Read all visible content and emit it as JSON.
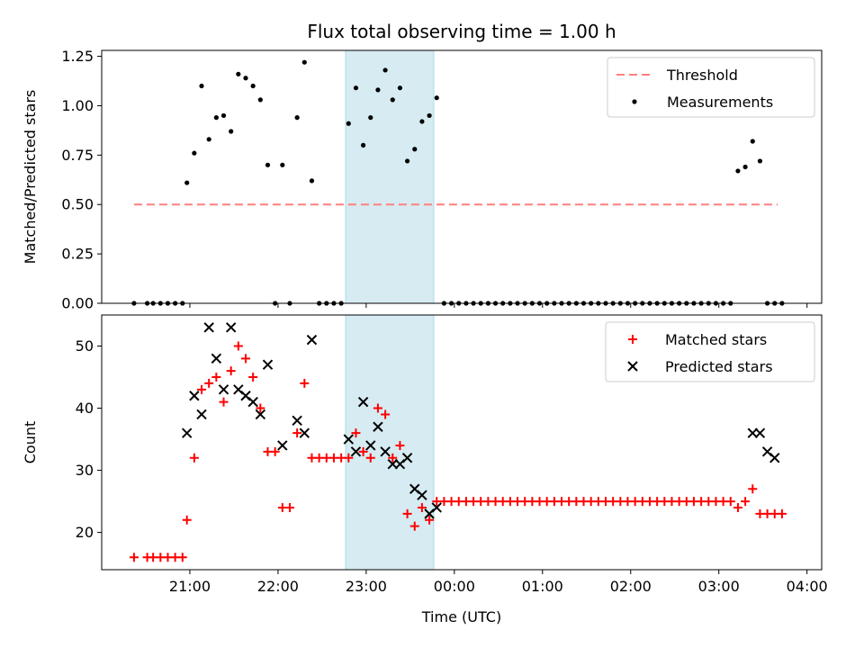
{
  "figure": {
    "title": "Flux total observing time = 1.00 h",
    "xlabel": "Time (UTC)"
  },
  "x_ticks": [
    "21:00",
    "22:00",
    "23:00",
    "00:00",
    "01:00",
    "02:00",
    "03:00",
    "04:00"
  ],
  "highlight": {
    "start": "22:46",
    "end": "23:46",
    "color": "#add8e6"
  },
  "chart_data": [
    {
      "type": "scatter",
      "ylabel": "Matched/Predicted stars",
      "ylim": [
        0,
        1.28
      ],
      "yticks": [
        "0.00",
        "0.25",
        "0.50",
        "0.75",
        "1.00",
        "1.25"
      ],
      "ytick_values": [
        0,
        0.25,
        0.5,
        0.75,
        1.0,
        1.25
      ],
      "legend": {
        "placement": "upper-right",
        "entries": [
          "Threshold",
          "Measurements"
        ]
      },
      "series": [
        {
          "name": "Threshold",
          "kind": "dashed-line",
          "color": "#ff7f7f",
          "x": [
            "20:22",
            "23:58",
            "03:40"
          ],
          "y": [
            0.5,
            0.5,
            0.5
          ]
        },
        {
          "name": "Measurements",
          "kind": "dot",
          "color": "#000000",
          "x": [
            "20:22",
            "20:31",
            "20:35",
            "20:40",
            "20:45",
            "20:50",
            "20:55",
            "20:58",
            "21:03",
            "21:08",
            "21:13",
            "21:18",
            "21:23",
            "21:28",
            "21:33",
            "21:38",
            "21:43",
            "21:48",
            "21:53",
            "21:58",
            "22:03",
            "22:08",
            "22:13",
            "22:18",
            "22:23",
            "22:28",
            "22:33",
            "22:38",
            "22:43",
            "22:48",
            "22:53",
            "22:58",
            "23:03",
            "23:08",
            "23:13",
            "23:18",
            "23:23",
            "23:28",
            "23:33",
            "23:38",
            "23:43",
            "23:48",
            "23:53",
            "23:58",
            "00:03",
            "00:08",
            "00:13",
            "00:18",
            "00:23",
            "00:28",
            "00:33",
            "00:38",
            "00:43",
            "00:48",
            "00:53",
            "00:58",
            "01:03",
            "01:08",
            "01:13",
            "01:18",
            "01:23",
            "01:28",
            "01:33",
            "01:38",
            "01:43",
            "01:48",
            "01:53",
            "01:58",
            "02:03",
            "02:08",
            "02:13",
            "02:18",
            "02:23",
            "02:28",
            "02:33",
            "02:38",
            "02:43",
            "02:48",
            "02:53",
            "02:58",
            "03:03",
            "03:08",
            "03:13",
            "03:18",
            "03:23",
            "03:28",
            "03:33",
            "03:38",
            "03:43"
          ],
          "y": [
            0,
            0,
            0,
            0,
            0,
            0,
            0,
            0.61,
            0.76,
            1.1,
            0.83,
            0.94,
            0.95,
            0.87,
            1.16,
            1.14,
            1.1,
            1.03,
            0.7,
            0,
            0.7,
            0,
            0.94,
            1.22,
            0.62,
            0,
            0,
            0,
            0,
            0.91,
            1.09,
            0.8,
            0.94,
            1.08,
            1.18,
            1.03,
            1.09,
            0.72,
            0.78,
            0.92,
            0.95,
            1.04,
            0,
            0,
            0,
            0,
            0,
            0,
            0,
            0,
            0,
            0,
            0,
            0,
            0,
            0,
            0,
            0,
            0,
            0,
            0,
            0,
            0,
            0,
            0,
            0,
            0,
            0,
            0,
            0,
            0,
            0,
            0,
            0,
            0,
            0,
            0,
            0,
            0,
            0,
            0,
            0,
            0.67,
            0.69,
            0.82,
            0.72,
            0,
            0,
            0
          ]
        }
      ]
    },
    {
      "type": "scatter",
      "ylabel": "Count",
      "ylim": [
        14,
        55
      ],
      "yticks": [
        "20",
        "30",
        "40",
        "50"
      ],
      "ytick_values": [
        20,
        30,
        40,
        50
      ],
      "legend": {
        "placement": "upper-right",
        "entries": [
          "Matched stars",
          "Predicted stars"
        ]
      },
      "series": [
        {
          "name": "Matched stars",
          "kind": "plus",
          "color": "#ff0000",
          "x": [
            "20:22",
            "20:31",
            "20:35",
            "20:40",
            "20:45",
            "20:50",
            "20:55",
            "20:58",
            "21:03",
            "21:08",
            "21:13",
            "21:18",
            "21:23",
            "21:28",
            "21:33",
            "21:38",
            "21:43",
            "21:48",
            "21:53",
            "21:58",
            "22:03",
            "22:08",
            "22:13",
            "22:18",
            "22:23",
            "22:28",
            "22:33",
            "22:38",
            "22:43",
            "22:48",
            "22:53",
            "22:58",
            "23:03",
            "23:08",
            "23:13",
            "23:18",
            "23:23",
            "23:28",
            "23:33",
            "23:38",
            "23:43",
            "23:48",
            "23:53",
            "23:58",
            "00:03",
            "00:08",
            "00:13",
            "00:18",
            "00:23",
            "00:28",
            "00:33",
            "00:38",
            "00:43",
            "00:48",
            "00:53",
            "00:58",
            "01:03",
            "01:08",
            "01:13",
            "01:18",
            "01:23",
            "01:28",
            "01:33",
            "01:38",
            "01:43",
            "01:48",
            "01:53",
            "01:58",
            "02:03",
            "02:08",
            "02:13",
            "02:18",
            "02:23",
            "02:28",
            "02:33",
            "02:38",
            "02:43",
            "02:48",
            "02:53",
            "02:58",
            "03:03",
            "03:08",
            "03:13",
            "03:18",
            "03:23",
            "03:28",
            "03:33",
            "03:38",
            "03:43"
          ],
          "y": [
            16,
            16,
            16,
            16,
            16,
            16,
            16,
            22,
            32,
            43,
            44,
            45,
            41,
            46,
            50,
            48,
            45,
            40,
            33,
            33,
            24,
            24,
            36,
            44,
            32,
            32,
            32,
            32,
            32,
            32,
            36,
            33,
            32,
            40,
            39,
            32,
            34,
            23,
            21,
            24,
            22,
            25,
            25,
            25,
            25,
            25,
            25,
            25,
            25,
            25,
            25,
            25,
            25,
            25,
            25,
            25,
            25,
            25,
            25,
            25,
            25,
            25,
            25,
            25,
            25,
            25,
            25,
            25,
            25,
            25,
            25,
            25,
            25,
            25,
            25,
            25,
            25,
            25,
            25,
            25,
            25,
            25,
            24,
            25,
            27,
            23,
            23,
            23,
            23
          ]
        },
        {
          "name": "Predicted stars",
          "kind": "x",
          "color": "#000000",
          "x": [
            "20:58",
            "21:03",
            "21:08",
            "21:13",
            "21:18",
            "21:23",
            "21:28",
            "21:33",
            "21:38",
            "21:43",
            "21:48",
            "21:53",
            "22:03",
            "22:13",
            "22:18",
            "22:23",
            "22:48",
            "22:53",
            "22:58",
            "23:03",
            "23:08",
            "23:13",
            "23:18",
            "23:23",
            "23:28",
            "23:33",
            "23:38",
            "23:43",
            "23:48",
            "03:23",
            "03:28",
            "03:33",
            "03:38"
          ],
          "y": [
            36,
            42,
            39,
            53,
            48,
            43,
            53,
            43,
            42,
            41,
            39,
            47,
            34,
            38,
            36,
            51,
            35,
            33,
            41,
            34,
            37,
            33,
            31,
            31,
            32,
            27,
            26,
            23,
            24,
            36,
            36,
            33,
            32
          ]
        }
      ]
    }
  ]
}
